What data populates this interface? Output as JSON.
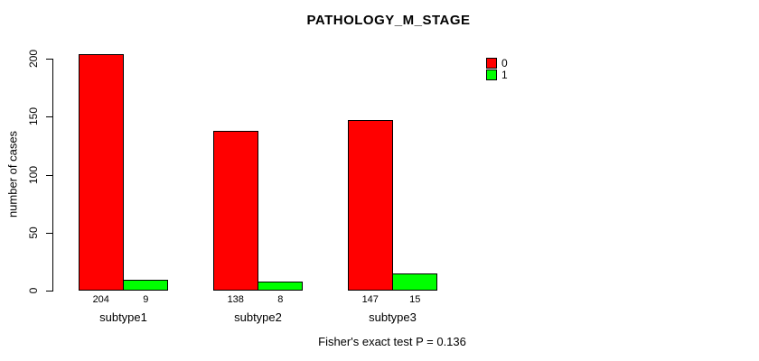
{
  "title": "PATHOLOGY_M_STAGE",
  "footer": "Fisher's exact test P = 0.136",
  "chart_data": {
    "type": "bar",
    "title": "PATHOLOGY_M_STAGE",
    "categories": [
      "subtype1",
      "subtype2",
      "subtype3"
    ],
    "series": [
      {
        "name": "0",
        "color": "#ff0000",
        "values": [
          204,
          138,
          147
        ]
      },
      {
        "name": "1",
        "color": "#00ff00",
        "values": [
          9,
          8,
          15
        ]
      }
    ],
    "xlabel": "",
    "ylabel": "number of cases",
    "yticks": [
      0,
      50,
      100,
      150,
      200
    ],
    "ylim": [
      0,
      210
    ],
    "grid": false,
    "legend_position": "top-right",
    "bar_value_labels_shown": true,
    "annotation": "Fisher's exact test P = 0.136"
  }
}
